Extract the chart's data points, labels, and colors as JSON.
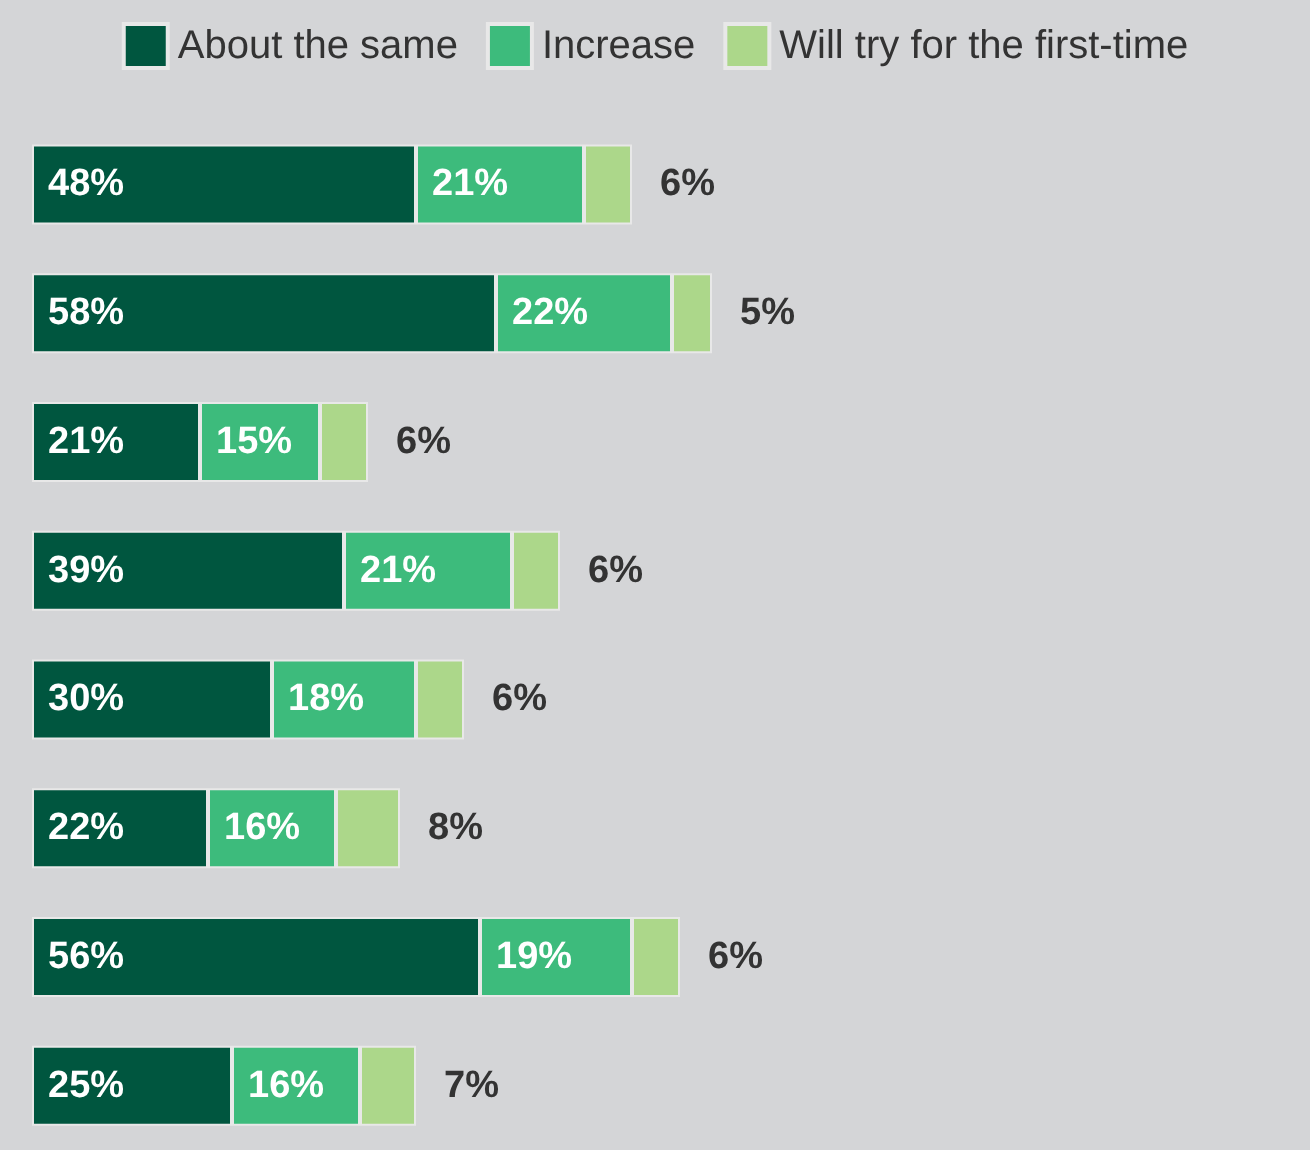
{
  "chart_data": {
    "type": "bar",
    "orientation": "horizontal",
    "stacked": true,
    "legend": "top",
    "categories": [
      null,
      null,
      null,
      null,
      null,
      null,
      null,
      null
    ],
    "series": [
      {
        "name": "About the same",
        "color": "#00563f",
        "values": [
          48,
          58,
          21,
          39,
          30,
          22,
          56,
          25
        ],
        "value_labels": [
          "48%",
          "58%",
          "21%",
          "39%",
          "30%",
          "22%",
          "56%",
          "25%"
        ]
      },
      {
        "name": "Increase",
        "color": "#3dbb7c",
        "values": [
          21,
          22,
          15,
          21,
          18,
          16,
          19,
          16
        ],
        "value_labels": [
          "21%",
          "22%",
          "15%",
          "21%",
          "18%",
          "16%",
          "19%",
          "16%"
        ]
      },
      {
        "name": "Will try for the first-time",
        "color": "#acd78a",
        "values": [
          6,
          5,
          6,
          6,
          6,
          8,
          6,
          7
        ],
        "value_labels": [
          "6%",
          "5%",
          "6%",
          "6%",
          "6%",
          "8%",
          "6%",
          "7%"
        ]
      }
    ]
  }
}
